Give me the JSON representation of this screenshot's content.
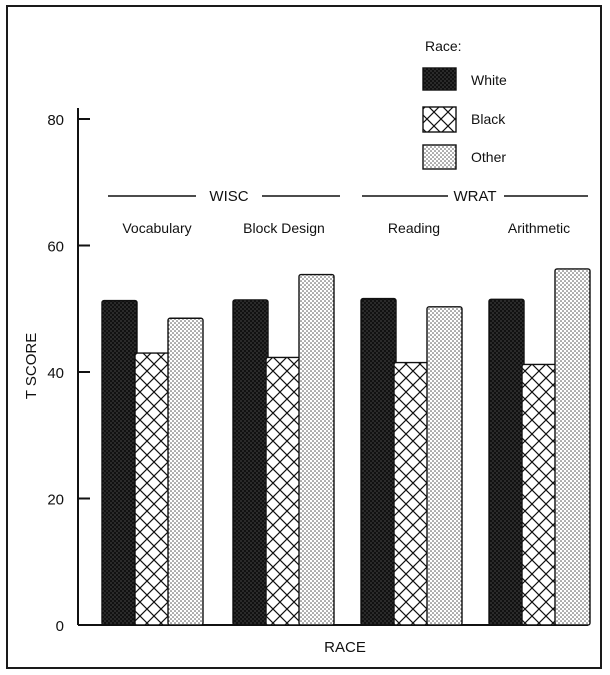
{
  "chart_data": {
    "type": "bar",
    "xlabel": "RACE",
    "ylabel": "T SCORE",
    "ylim": [
      0,
      80
    ],
    "yticks": [
      0,
      20,
      40,
      60,
      80
    ],
    "groups": [
      {
        "label": "WISC",
        "categories": [
          "Vocabulary",
          "Block Design"
        ]
      },
      {
        "label": "WRAT",
        "categories": [
          "Reading",
          "Arithmetic"
        ]
      }
    ],
    "categories": [
      "Vocabulary",
      "Block Design",
      "Reading",
      "Arithmetic"
    ],
    "legend_title": "Race:",
    "legend_position": "top-right",
    "series": [
      {
        "name": "White",
        "pattern": "dense-dots",
        "values": [
          51.3,
          51.4,
          51.6,
          51.5
        ]
      },
      {
        "name": "Black",
        "pattern": "crosshatch",
        "values": [
          43.0,
          42.3,
          41.5,
          41.2
        ]
      },
      {
        "name": "Other",
        "pattern": "light-dots",
        "values": [
          48.5,
          55.4,
          50.3,
          56.3
        ]
      }
    ],
    "grid": false,
    "colors": {
      "ink": "#111111",
      "background": "#ffffff"
    }
  }
}
